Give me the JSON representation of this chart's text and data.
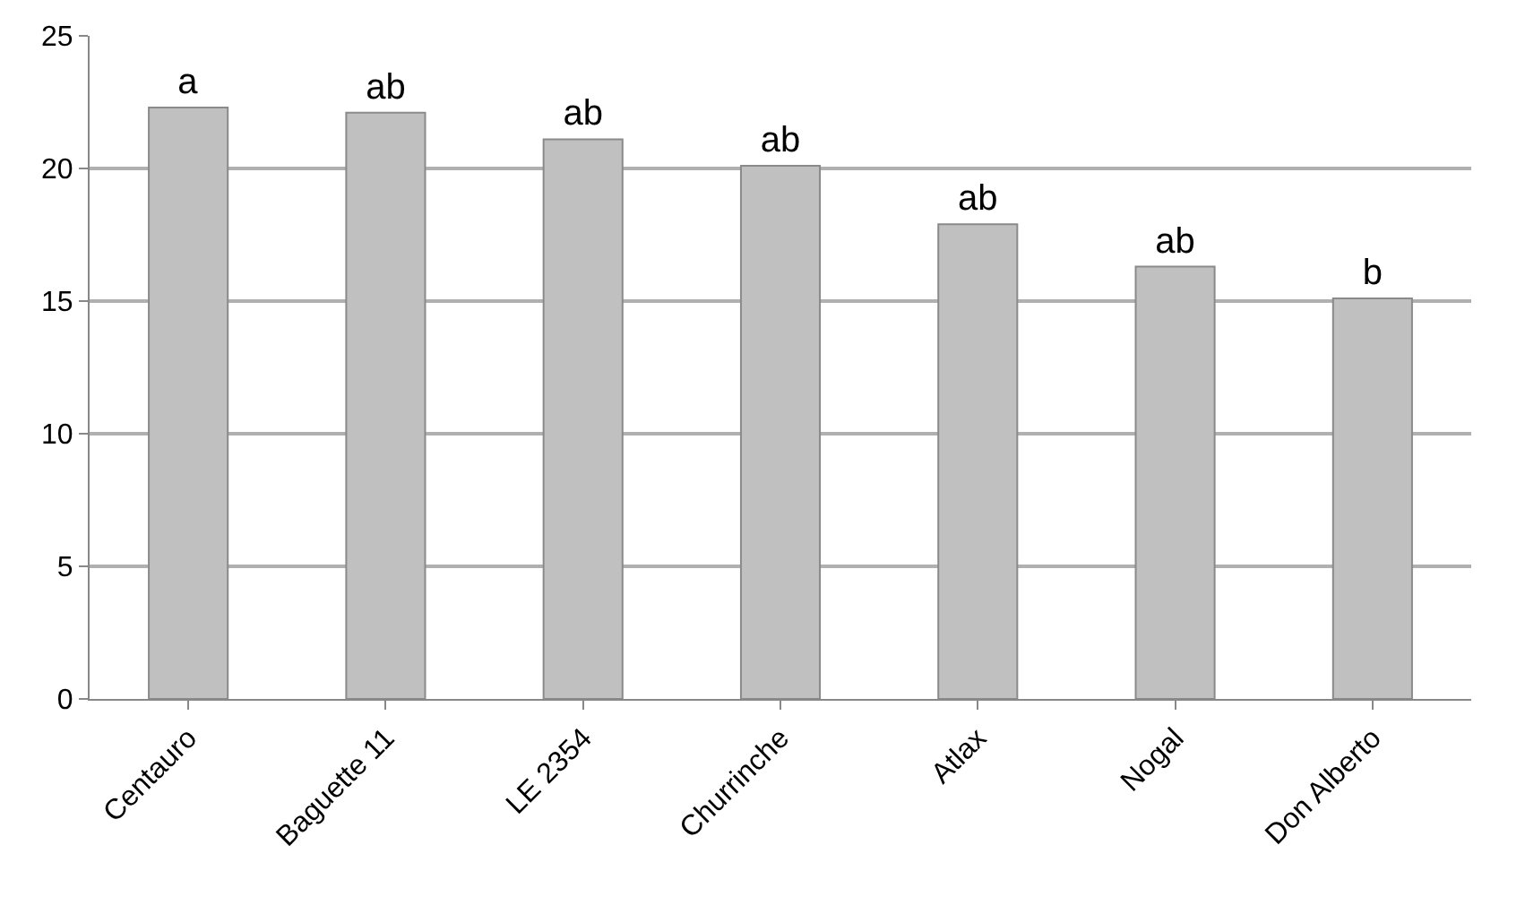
{
  "chart_data": {
    "type": "bar",
    "categories": [
      "Centauro",
      "Baguette 11",
      "LE 2354",
      "Churrinche",
      "Atlax",
      "Nogal",
      "Don Alberto"
    ],
    "values": [
      22.3,
      22.1,
      21.1,
      20.1,
      17.9,
      16.3,
      15.1
    ],
    "value_labels": [
      "a",
      "ab",
      "ab",
      "ab",
      "ab",
      "ab",
      "b"
    ],
    "color": "#c0c0c0",
    "ylim": [
      0,
      25
    ],
    "yticks": [
      0,
      5,
      10,
      15,
      20,
      25
    ],
    "grid": "y"
  }
}
